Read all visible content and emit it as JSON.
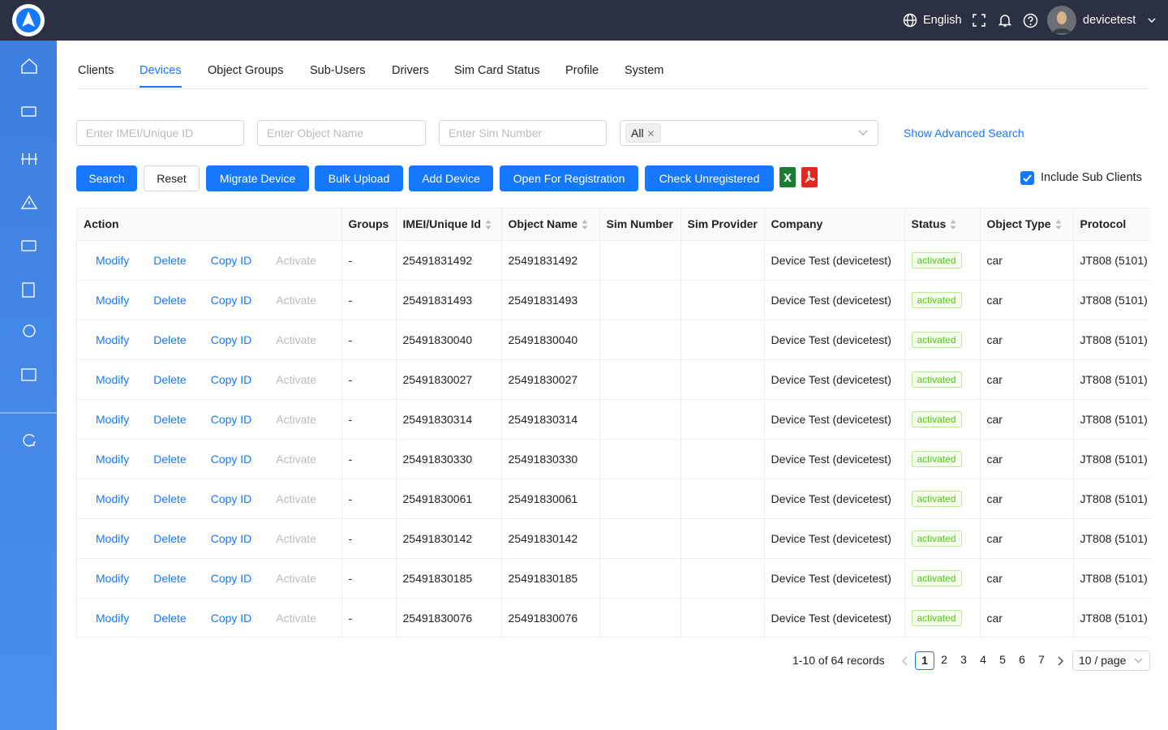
{
  "header": {
    "language": "English",
    "user": "devicetest"
  },
  "tabs": [
    "Clients",
    "Devices",
    "Object Groups",
    "Sub-Users",
    "Drivers",
    "Sim Card Status",
    "Profile",
    "System"
  ],
  "filters": {
    "imei_placeholder": "Enter IMEI/Unique ID",
    "object_name_placeholder": "Enter Object Name",
    "sim_placeholder": "Enter Sim Number",
    "status_tag": "All",
    "advanced_search": "Show Advanced Search"
  },
  "buttons": [
    "Search",
    "Reset",
    "Migrate Device",
    "Bulk Upload",
    "Add Device",
    "Open For Registration",
    "Check Unregistered"
  ],
  "include_sub_clients": "Include Sub Clients",
  "table": {
    "columns": [
      {
        "title": "Action"
      },
      {
        "title": "Groups"
      },
      {
        "title": "IMEI/Unique Id",
        "sortable": true
      },
      {
        "title": "Object Name",
        "sortable": true
      },
      {
        "title": "Sim Number"
      },
      {
        "title": "Sim Provider"
      },
      {
        "title": "Company"
      },
      {
        "title": "Status",
        "sortable": true
      },
      {
        "title": "Object Type",
        "sortable": true
      },
      {
        "title": "Protocol"
      }
    ],
    "row_actions": [
      "Modify",
      "Delete",
      "Copy ID",
      "Activate"
    ],
    "rows": [
      {
        "groups": "-",
        "imei": "25491831492",
        "object_name": "25491831492",
        "company": "Device Test (devicetest)",
        "status": "activated",
        "object_type": "car",
        "protocol": "JT808 (5101)"
      },
      {
        "groups": "-",
        "imei": "25491831493",
        "object_name": "25491831493",
        "company": "Device Test (devicetest)",
        "status": "activated",
        "object_type": "car",
        "protocol": "JT808 (5101)"
      },
      {
        "groups": "-",
        "imei": "25491830040",
        "object_name": "25491830040",
        "company": "Device Test (devicetest)",
        "status": "activated",
        "object_type": "car",
        "protocol": "JT808 (5101)"
      },
      {
        "groups": "-",
        "imei": "25491830027",
        "object_name": "25491830027",
        "company": "Device Test (devicetest)",
        "status": "activated",
        "object_type": "car",
        "protocol": "JT808 (5101)"
      },
      {
        "groups": "-",
        "imei": "25491830314",
        "object_name": "25491830314",
        "company": "Device Test (devicetest)",
        "status": "activated",
        "object_type": "car",
        "protocol": "JT808 (5101)"
      },
      {
        "groups": "-",
        "imei": "25491830330",
        "object_name": "25491830330",
        "company": "Device Test (devicetest)",
        "status": "activated",
        "object_type": "car",
        "protocol": "JT808 (5101)"
      },
      {
        "groups": "-",
        "imei": "25491830061",
        "object_name": "25491830061",
        "company": "Device Test (devicetest)",
        "status": "activated",
        "object_type": "car",
        "protocol": "JT808 (5101)"
      },
      {
        "groups": "-",
        "imei": "25491830142",
        "object_name": "25491830142",
        "company": "Device Test (devicetest)",
        "status": "activated",
        "object_type": "car",
        "protocol": "JT808 (5101)"
      },
      {
        "groups": "-",
        "imei": "25491830185",
        "object_name": "25491830185",
        "company": "Device Test (devicetest)",
        "status": "activated",
        "object_type": "car",
        "protocol": "JT808 (5101)"
      },
      {
        "groups": "-",
        "imei": "25491830076",
        "object_name": "25491830076",
        "company": "Device Test (devicetest)",
        "status": "activated",
        "object_type": "car",
        "protocol": "JT808 (5101)"
      }
    ]
  },
  "pagination": {
    "summary": "1-10 of 64 records",
    "pages": [
      1,
      2,
      3,
      4,
      5,
      6,
      7
    ],
    "page_size": "10 / page"
  }
}
